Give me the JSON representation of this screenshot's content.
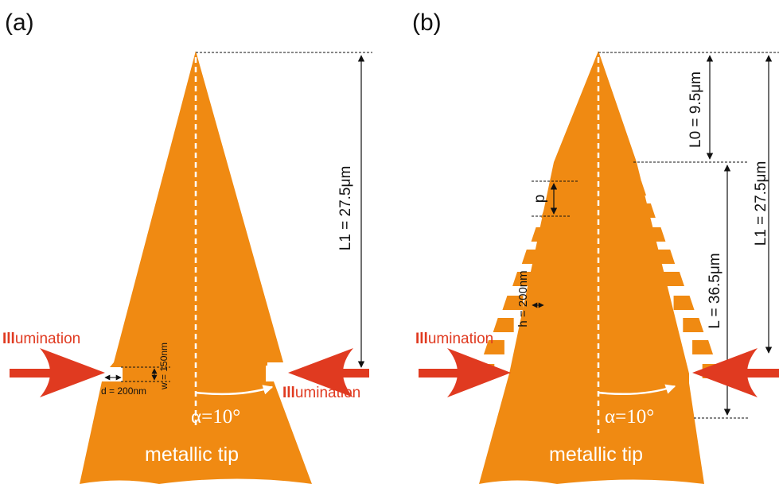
{
  "colors": {
    "tip": "#F08A12",
    "arrow": "#E03A20",
    "illumination_text": "#E03A20",
    "dimension_lines": "#111111",
    "background": "#ffffff"
  },
  "panel_a": {
    "label": "(a)",
    "tip_label": "metallic tip",
    "angle_label": "α=10°",
    "l1_label": "L1 = 27.5μm",
    "w_label": "w = 150nm",
    "d_label": "d = 200nm",
    "illumination_left_head": "Ill",
    "illumination_left_tail": "umination",
    "illumination_right_head": "Ill",
    "illumination_right_tail": "umination"
  },
  "panel_b": {
    "label": "(b)",
    "tip_label": "metallic tip",
    "angle_label": "α=10°",
    "l0_label": "L0 = 9.5μm",
    "l1_label": "L1 = 27.5μm",
    "l_label": "L = 36.5μm",
    "p_label": "p",
    "h_label": "h = 200nm",
    "illumination_left_head": "Ill",
    "illumination_left_tail": "umination"
  }
}
